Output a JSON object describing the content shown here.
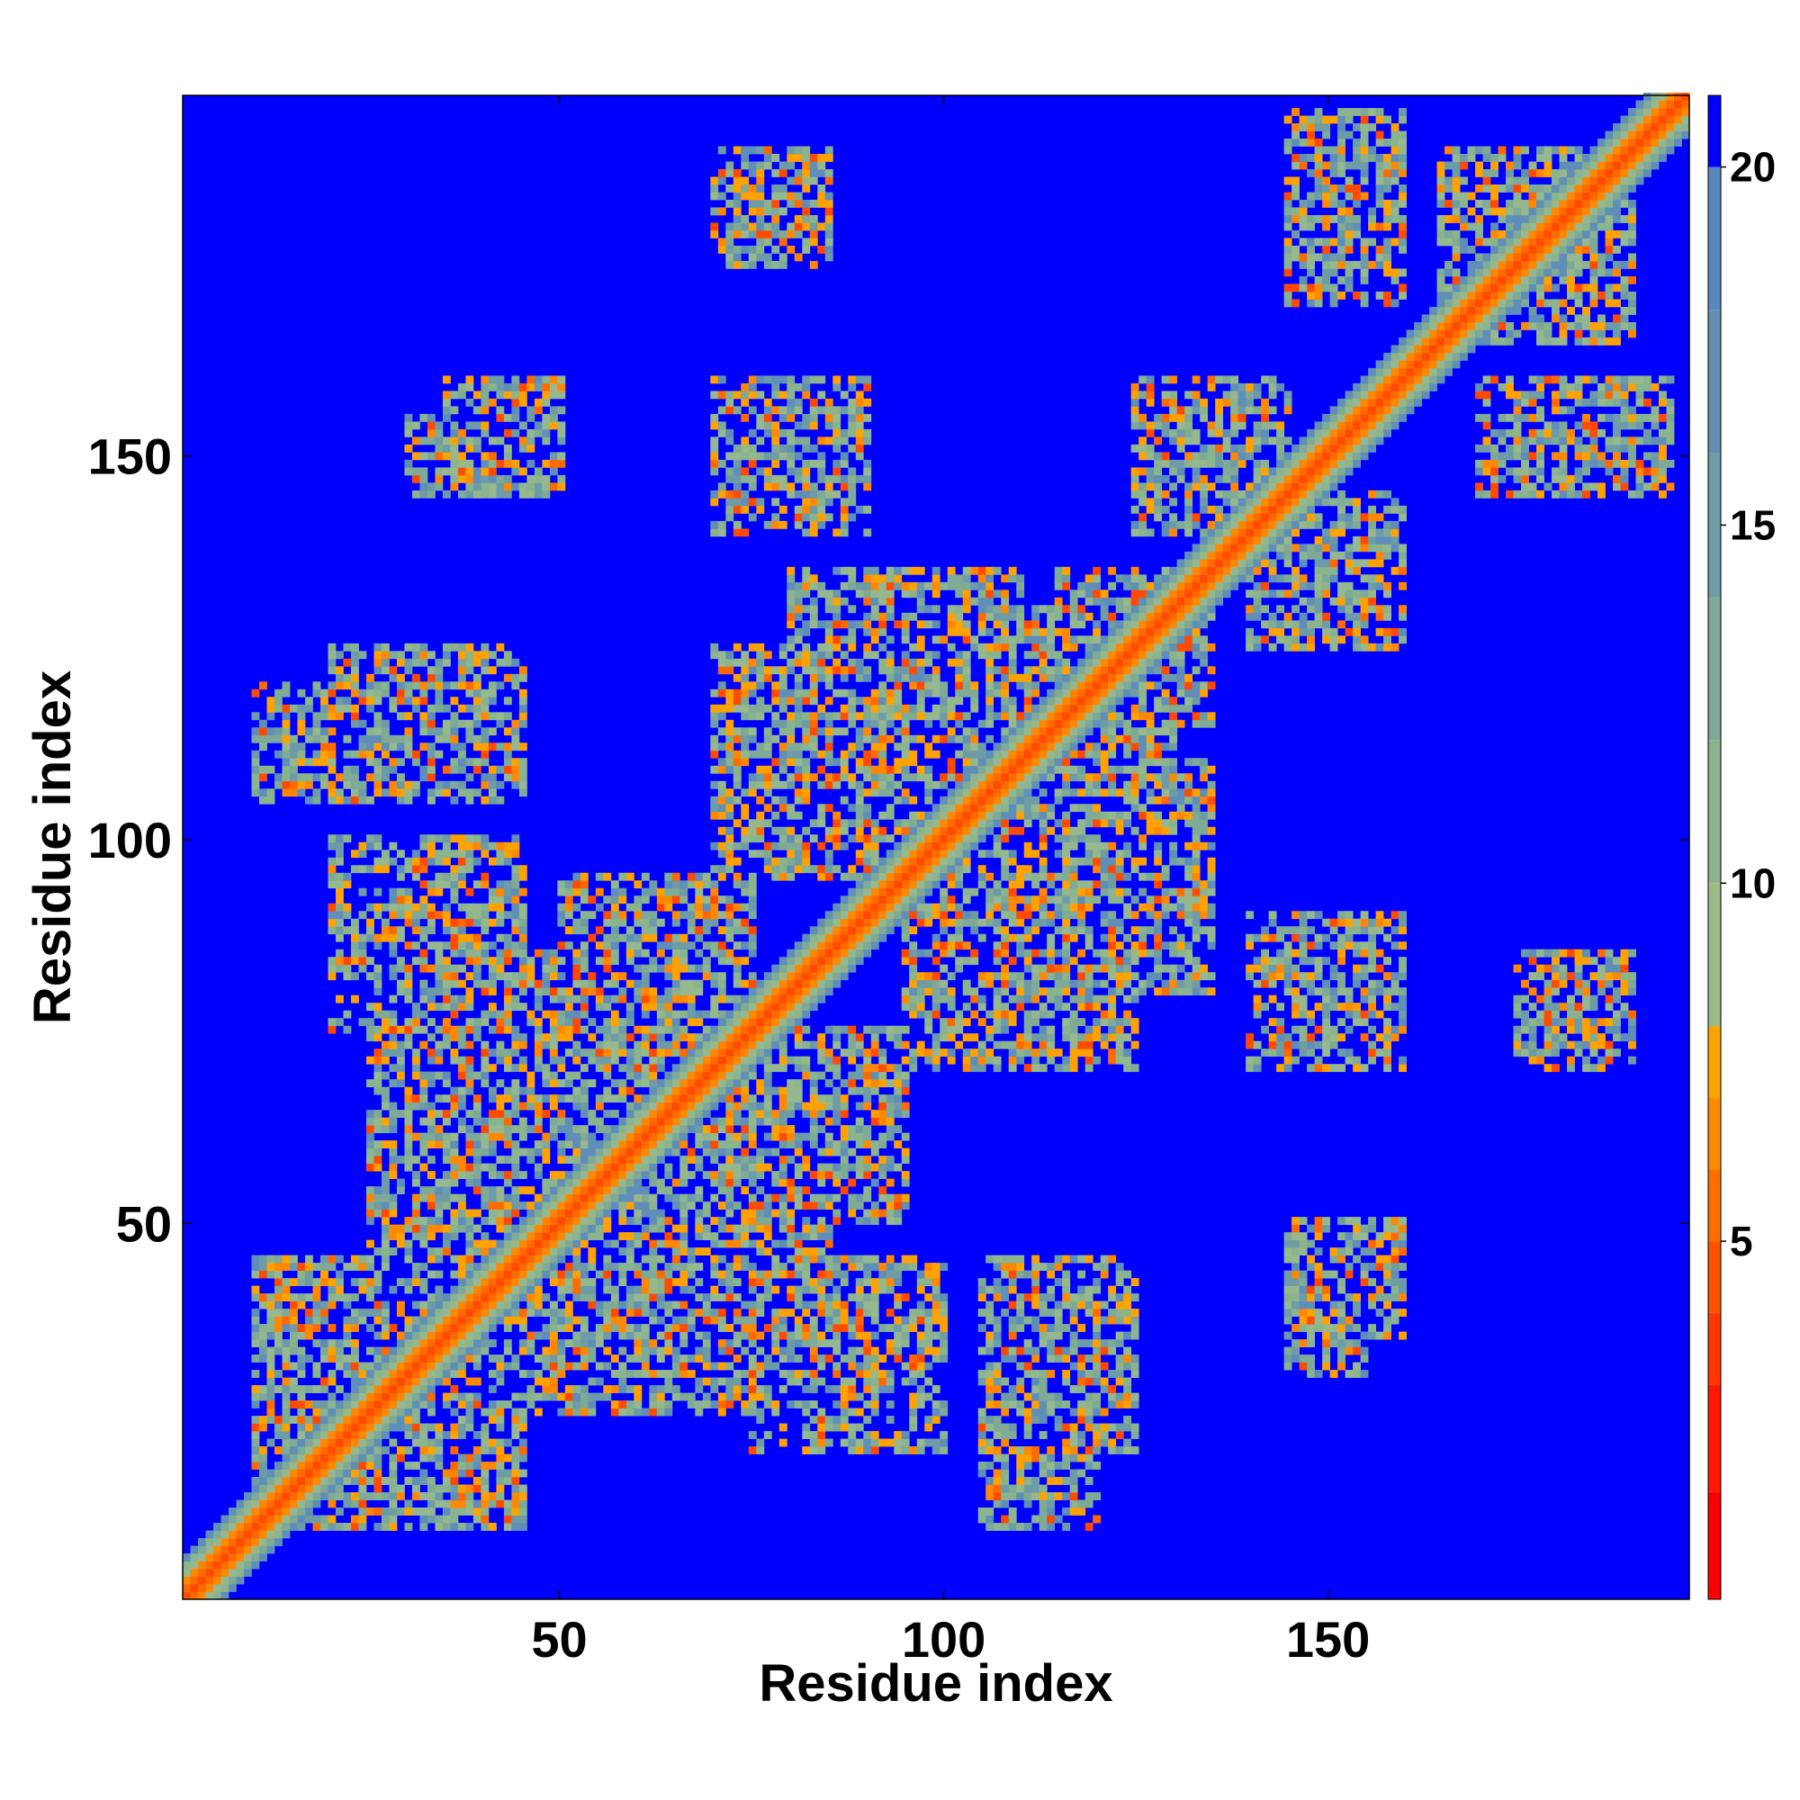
{
  "chart_data": {
    "type": "heatmap",
    "xlabel": "Residue index",
    "ylabel": "Residue index",
    "xlim": [
      1,
      197
    ],
    "ylim": [
      1,
      197
    ],
    "x_ticks": [
      50,
      100,
      150
    ],
    "y_ticks": [
      50,
      100,
      150
    ],
    "colorbar": {
      "ticks": [
        5,
        10,
        15,
        20
      ],
      "range": [
        0,
        21
      ],
      "scale_colors": [
        "#ff0000",
        "#ff2a00",
        "#ff4a00",
        "#ff6a00",
        "#ff8800",
        "#ffa200",
        "#96b88e",
        "#8ab48e",
        "#7eaa96",
        "#6e9ca6",
        "#5f8eb8",
        "#0000ff"
      ]
    },
    "background_color": "#0000ff",
    "description_values": {
      "diagonal_distance": 0,
      "near_diagonal_distances": [
        3.8,
        5.5,
        8,
        11,
        14,
        18
      ],
      "contact_clusters": [
        {
          "x": [
            15,
            45
          ],
          "y": [
            10,
            40
          ]
        },
        {
          "x": [
            25,
            70
          ],
          "y": [
            45,
            85
          ]
        },
        {
          "x": [
            70,
            95
          ],
          "y": [
            50,
            75
          ]
        },
        {
          "x": [
            75,
            100
          ],
          "y": [
            20,
            45
          ]
        },
        {
          "x": [
            105,
            125
          ],
          "y": [
            20,
            45
          ]
        },
        {
          "x": [
            70,
            105
          ],
          "y": [
            95,
            125
          ]
        },
        {
          "x": [
            100,
            135
          ],
          "y": [
            80,
            110
          ]
        },
        {
          "x": [
            110,
            135
          ],
          "y": [
            115,
            130
          ]
        },
        {
          "x": [
            145,
            160
          ],
          "y": [
            70,
            90
          ]
        },
        {
          "x": [
            140,
            160
          ],
          "y": [
            130,
            140
          ]
        },
        {
          "x": [
            125,
            145
          ],
          "y": [
            140,
            160
          ]
        },
        {
          "x": [
            170,
            195
          ],
          "y": [
            145,
            160
          ]
        },
        {
          "x": [
            165,
            190
          ],
          "y": [
            165,
            190
          ]
        },
        {
          "x": [
            145,
            160
          ],
          "y": [
            175,
            190
          ]
        },
        {
          "x": [
            10,
            45
          ],
          "y": [
            105,
            120
          ]
        },
        {
          "x": [
            30,
            50
          ],
          "y": [
            145,
            155
          ]
        },
        {
          "x": [
            70,
            90
          ],
          "y": [
            140,
            160
          ]
        },
        {
          "x": [
            70,
            85
          ],
          "y": [
            175,
            190
          ]
        },
        {
          "x": [
            145,
            160
          ],
          "y": [
            35,
            50
          ]
        },
        {
          "x": [
            175,
            190
          ],
          "y": [
            75,
            85
          ]
        }
      ]
    }
  }
}
